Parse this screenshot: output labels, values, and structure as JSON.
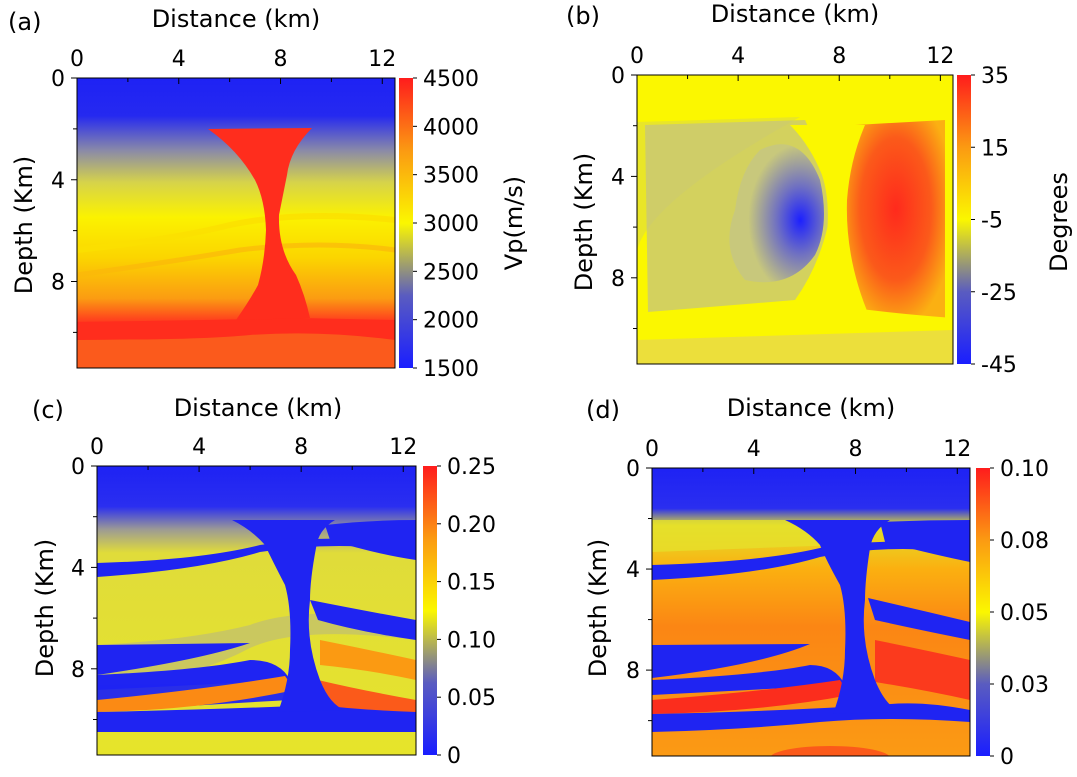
{
  "chart_data": [
    {
      "panel_label": "(a)",
      "type": "heatmap",
      "xlabel": "Distance (km)",
      "ylabel": "Depth (Km)",
      "x_ticks": [
        "0",
        "4",
        "8",
        "12"
      ],
      "y_ticks": [
        "0",
        "4",
        "8"
      ],
      "xlim": [
        0,
        12.5
      ],
      "ylim": [
        0,
        11.4
      ],
      "colorbar": {
        "label": "Vp(m/s)",
        "ticks": [
          "4500",
          "4000",
          "3500",
          "3000",
          "2500",
          "2000",
          "1500"
        ],
        "range": [
          1500,
          4500
        ]
      }
    },
    {
      "panel_label": "(b)",
      "type": "heatmap",
      "xlabel": "Distance (km)",
      "ylabel": "Depth (Km)",
      "x_ticks": [
        "0",
        "4",
        "8",
        "12"
      ],
      "y_ticks": [
        "0",
        "4",
        "8"
      ],
      "xlim": [
        0,
        12.5
      ],
      "ylim": [
        0,
        11.4
      ],
      "colorbar": {
        "label": "Degrees",
        "ticks": [
          "35",
          "15",
          "-5",
          "-25",
          "-45"
        ],
        "range": [
          -45,
          45
        ]
      }
    },
    {
      "panel_label": "(c)",
      "type": "heatmap",
      "xlabel": "Distance (km)",
      "ylabel": "Depth (Km)",
      "x_ticks": [
        "0",
        "4",
        "8",
        "12"
      ],
      "y_ticks": [
        "0",
        "4",
        "8"
      ],
      "xlim": [
        0,
        12.5
      ],
      "ylim": [
        0,
        11.4
      ],
      "colorbar": {
        "label": "",
        "ticks": [
          "0.25",
          "0.20",
          "0.15",
          "0.10",
          "0.05",
          "0"
        ],
        "range": [
          0,
          0.25
        ]
      }
    },
    {
      "panel_label": "(d)",
      "type": "heatmap",
      "xlabel": "Distance (km)",
      "ylabel": "Depth (Km)",
      "x_ticks": [
        "0",
        "4",
        "8",
        "12"
      ],
      "y_ticks": [
        "0",
        "4",
        "8"
      ],
      "xlim": [
        0,
        12.5
      ],
      "ylim": [
        0,
        11.4
      ],
      "colorbar": {
        "label": "",
        "ticks": [
          "0.10",
          "0.08",
          "0.05",
          "0.03",
          "0"
        ],
        "range": [
          0,
          0.1
        ]
      }
    }
  ],
  "colors": {
    "blue": "#1f24f2",
    "yellow": "#fbf700",
    "orange": "#fb9a12",
    "red": "#ff2d1d"
  }
}
